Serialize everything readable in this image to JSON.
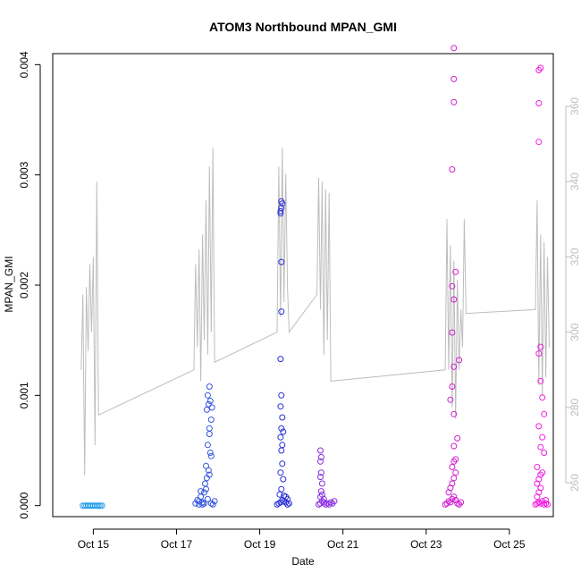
{
  "chart_data": {
    "type": "scatter",
    "title": "ATOM3 Northbound MPAN_GMI",
    "xlabel": "Date",
    "ylabel": "MPAN_GMI",
    "xlim": [
      "2022-10-14 00:36",
      "2022-10-26 01:20"
    ],
    "ylim": [
      -0.0001,
      0.0041
    ],
    "ylim_right": [
      251,
      374
    ],
    "x_ticks": [
      "Oct 15",
      "Oct 17",
      "Oct 19",
      "Oct 21",
      "Oct 23",
      "Oct 25"
    ],
    "x_tick_dates": [
      "2022-10-15",
      "2022-10-17",
      "2022-10-19",
      "2022-10-21",
      "2022-10-23",
      "2022-10-25"
    ],
    "y_ticks": [
      "0.000",
      "0.001",
      "0.002",
      "0.003",
      "0.004"
    ],
    "y_tick_values": [
      0,
      0.001,
      0.002,
      0.003,
      0.004
    ],
    "y2_ticks": [
      "260",
      "280",
      "300",
      "320",
      "340",
      "360"
    ],
    "y2_tick_values": [
      260,
      280,
      300,
      320,
      340,
      360
    ],
    "colors": {
      "line": "#bdbdbd",
      "axis": "#000000",
      "right_axis": "#bdbdbd"
    },
    "series": [
      {
        "color": "#1e9be8",
        "points": [
          [
            "2022-10-14 18:00",
            0
          ],
          [
            "2022-10-14 19:00",
            0
          ],
          [
            "2022-10-14 20:00",
            0
          ],
          [
            "2022-10-14 21:00",
            0
          ],
          [
            "2022-10-14 22:00",
            0
          ],
          [
            "2022-10-14 23:00",
            0
          ],
          [
            "2022-10-15 00:00",
            0
          ],
          [
            "2022-10-15 01:00",
            0
          ],
          [
            "2022-10-15 02:00",
            0
          ],
          [
            "2022-10-15 03:00",
            0
          ],
          [
            "2022-10-15 04:00",
            0
          ],
          [
            "2022-10-15 05:00",
            0
          ]
        ]
      },
      {
        "color": "#3355dd",
        "points": [
          [
            "2022-10-17 11:00",
            2e-05
          ],
          [
            "2022-10-17 12:00",
            5e-05
          ],
          [
            "2022-10-17 13:00",
            4e-05
          ],
          [
            "2022-10-17 14:00",
            8e-05
          ],
          [
            "2022-10-17 15:00",
            3e-05
          ],
          [
            "2022-10-17 16:00",
            0.00012
          ],
          [
            "2022-10-17 17:00",
            0.00015
          ],
          [
            "2022-10-17 18:00",
            6e-05
          ],
          [
            "2022-10-17 14:00",
            0.00013
          ],
          [
            "2022-10-17 16:30",
            0.0002
          ],
          [
            "2022-10-17 17:30",
            0.00025
          ],
          [
            "2022-10-17 18:30",
            0.00032
          ],
          [
            "2022-10-17 17:00",
            0.00036
          ],
          [
            "2022-10-17 19:00",
            0.00028
          ],
          [
            "2022-10-17 20:00",
            0.00045
          ],
          [
            "2022-10-17 19:30",
            0.00048
          ],
          [
            "2022-10-17 18:00",
            0.00055
          ],
          [
            "2022-10-17 19:00",
            0.0007
          ],
          [
            "2022-10-17 20:00",
            0.00078
          ],
          [
            "2022-10-17 17:30",
            0.00087
          ],
          [
            "2022-10-17 18:30",
            0.00092
          ],
          [
            "2022-10-17 19:30",
            0.00095
          ],
          [
            "2022-10-17 18:00",
            0.001
          ],
          [
            "2022-10-17 19:00",
            0.00108
          ],
          [
            "2022-10-17 20:30",
            0.00089
          ],
          [
            "2022-10-17 19:00",
            0.00065
          ],
          [
            "2022-10-17 20:00",
            2e-05
          ],
          [
            "2022-10-17 21:00",
            1e-05
          ],
          [
            "2022-10-17 22:00",
            4e-05
          ],
          [
            "2022-10-17 15:00",
            1e-05
          ],
          [
            "2022-10-17 16:00",
            2e-05
          ],
          [
            "2022-10-17 13:00",
            1e-05
          ]
        ]
      },
      {
        "color": "#2a2ed6",
        "points": [
          [
            "2022-10-19 10:00",
            1e-05
          ],
          [
            "2022-10-19 11:00",
            2e-05
          ],
          [
            "2022-10-19 12:00",
            3e-05
          ],
          [
            "2022-10-19 13:00",
            5e-05
          ],
          [
            "2022-10-19 14:00",
            4e-05
          ],
          [
            "2022-10-19 15:00",
            8e-05
          ],
          [
            "2022-10-19 16:00",
            6e-05
          ],
          [
            "2022-10-19 17:00",
            2e-05
          ],
          [
            "2022-10-19 11:30",
            0.0001
          ],
          [
            "2022-10-19 12:30",
            0.00015
          ],
          [
            "2022-10-19 13:30",
            0.00024
          ],
          [
            "2022-10-19 12:00",
            0.0003
          ],
          [
            "2022-10-19 13:00",
            0.00038
          ],
          [
            "2022-10-19 12:30",
            0.0005
          ],
          [
            "2022-10-19 13:00",
            0.00055
          ],
          [
            "2022-10-19 12:00",
            0.00062
          ],
          [
            "2022-10-19 13:30",
            0.00067
          ],
          [
            "2022-10-19 12:30",
            0.0007
          ],
          [
            "2022-10-19 13:00",
            0.0008
          ],
          [
            "2022-10-19 12:00",
            0.0009
          ],
          [
            "2022-10-19 12:30",
            0.001
          ],
          [
            "2022-10-19 12:00",
            0.00133
          ],
          [
            "2022-10-19 12:30",
            0.00176
          ],
          [
            "2022-10-19 12:30",
            0.00221
          ],
          [
            "2022-10-19 12:30",
            0.0027
          ],
          [
            "2022-10-19 13:00",
            0.00274
          ],
          [
            "2022-10-19 12:30",
            0.00276
          ],
          [
            "2022-10-19 12:00",
            0.00267
          ],
          [
            "2022-10-19 12:00",
            0.00265
          ],
          [
            "2022-10-19 15:00",
            3e-05
          ],
          [
            "2022-10-19 16:00",
            1e-05
          ],
          [
            "2022-10-19 14:00",
            9e-05
          ]
        ]
      },
      {
        "color": "#8a2be2",
        "points": [
          [
            "2022-10-20 10:00",
            1e-05
          ],
          [
            "2022-10-20 11:00",
            2e-05
          ],
          [
            "2022-10-20 12:00",
            4e-05
          ],
          [
            "2022-10-20 13:00",
            3e-05
          ],
          [
            "2022-10-20 14:00",
            1e-05
          ],
          [
            "2022-10-20 15:00",
            2e-05
          ],
          [
            "2022-10-20 16:00",
            1e-05
          ],
          [
            "2022-10-20 17:00",
            3e-05
          ],
          [
            "2022-10-20 18:00",
            2e-05
          ],
          [
            "2022-10-20 19:00",
            4e-05
          ],
          [
            "2022-10-20 11:00",
            8e-05
          ],
          [
            "2022-10-20 12:00",
            0.0001
          ],
          [
            "2022-10-20 11:30",
            0.00013
          ],
          [
            "2022-10-20 12:00",
            0.0002
          ],
          [
            "2022-10-20 11:00",
            0.00026
          ],
          [
            "2022-10-20 11:30",
            0.0003
          ],
          [
            "2022-10-20 11:00",
            0.0004
          ],
          [
            "2022-10-20 11:30",
            0.00044
          ],
          [
            "2022-10-20 11:00",
            0.0005
          ],
          [
            "2022-10-20 13:00",
            6e-05
          ]
        ]
      },
      {
        "color": "#d11ed1",
        "points": [
          [
            "2022-10-23 11:00",
            1e-05
          ],
          [
            "2022-10-23 12:00",
            2e-05
          ],
          [
            "2022-10-23 13:00",
            4e-05
          ],
          [
            "2022-10-23 14:00",
            3e-05
          ],
          [
            "2022-10-23 15:00",
            6e-05
          ],
          [
            "2022-10-23 16:00",
            8e-05
          ],
          [
            "2022-10-23 17:00",
            5e-05
          ],
          [
            "2022-10-23 18:00",
            2e-05
          ],
          [
            "2022-10-23 19:00",
            1e-05
          ],
          [
            "2022-10-23 20:00",
            3e-05
          ],
          [
            "2022-10-23 13:00",
            0.00012
          ],
          [
            "2022-10-23 14:00",
            0.00016
          ],
          [
            "2022-10-23 15:00",
            0.0002
          ],
          [
            "2022-10-23 16:00",
            0.00025
          ],
          [
            "2022-10-23 17:00",
            0.0003
          ],
          [
            "2022-10-23 15:00",
            0.00035
          ],
          [
            "2022-10-23 16:00",
            0.0004
          ],
          [
            "2022-10-23 17:00",
            0.00042
          ],
          [
            "2022-10-23 16:00",
            0.00054
          ],
          [
            "2022-10-23 18:00",
            0.00061
          ],
          [
            "2022-10-23 16:00",
            0.00083
          ],
          [
            "2022-10-23 14:00",
            0.00096
          ],
          [
            "2022-10-23 15:00",
            0.00108
          ],
          [
            "2022-10-23 16:00",
            0.00126
          ],
          [
            "2022-10-23 19:00",
            0.00132
          ],
          [
            "2022-10-23 15:00",
            0.00157
          ],
          [
            "2022-10-23 16:00",
            0.00187
          ],
          [
            "2022-10-23 15:00",
            0.00199
          ],
          [
            "2022-10-23 17:00",
            0.00212
          ],
          [
            "2022-10-23 15:00",
            0.00305
          ],
          [
            "2022-10-23 16:00",
            0.00366
          ],
          [
            "2022-10-23 16:00",
            0.00387
          ],
          [
            "2022-10-23 16:00",
            0.00415
          ]
        ]
      },
      {
        "color": "#f01ce0",
        "points": [
          [
            "2022-10-25 15:00",
            1e-05
          ],
          [
            "2022-10-25 16:00",
            2e-05
          ],
          [
            "2022-10-25 17:00",
            3e-05
          ],
          [
            "2022-10-25 18:00",
            2e-05
          ],
          [
            "2022-10-25 19:00",
            4e-05
          ],
          [
            "2022-10-25 20:00",
            1e-05
          ],
          [
            "2022-10-25 21:00",
            2e-05
          ],
          [
            "2022-10-25 22:00",
            1e-05
          ],
          [
            "2022-10-25 16:00",
            8e-05
          ],
          [
            "2022-10-25 17:00",
            0.00012
          ],
          [
            "2022-10-25 18:00",
            0.00016
          ],
          [
            "2022-10-25 16:00",
            0.0002
          ],
          [
            "2022-10-25 17:00",
            0.00024
          ],
          [
            "2022-10-25 18:00",
            0.00028
          ],
          [
            "2022-10-25 16:00",
            0.00035
          ],
          [
            "2022-10-25 19:00",
            0.0003
          ],
          [
            "2022-10-25 20:00",
            0.00048
          ],
          [
            "2022-10-25 18:00",
            0.00053
          ],
          [
            "2022-10-25 19:00",
            0.00062
          ],
          [
            "2022-10-25 17:00",
            0.00072
          ],
          [
            "2022-10-25 20:00",
            0.00083
          ],
          [
            "2022-10-25 19:00",
            0.00098
          ],
          [
            "2022-10-25 18:00",
            0.00113
          ],
          [
            "2022-10-25 17:00",
            0.00138
          ],
          [
            "2022-10-25 18:00",
            0.00144
          ],
          [
            "2022-10-25 17:00",
            0.0033
          ],
          [
            "2022-10-25 17:00",
            0.00365
          ],
          [
            "2022-10-25 17:00",
            0.00395
          ],
          [
            "2022-10-25 18:00",
            0.00397
          ],
          [
            "2022-10-25 21:00",
            5e-05
          ]
        ]
      }
    ],
    "right_axis_line": {
      "color": "#bdbdbd",
      "points": [
        [
          "2022-10-14 17:00",
          290
        ],
        [
          "2022-10-14 18:00",
          310
        ],
        [
          "2022-10-14 19:00",
          262
        ],
        [
          "2022-10-14 20:00",
          312
        ],
        [
          "2022-10-14 21:00",
          295
        ],
        [
          "2022-10-14 22:00",
          318
        ],
        [
          "2022-10-14 23:00",
          300
        ],
        [
          "2022-10-15 00:00",
          320
        ],
        [
          "2022-10-15 01:00",
          270
        ],
        [
          "2022-10-15 02:00",
          340
        ],
        [
          "2022-10-15 03:00",
          278
        ],
        [
          "2022-10-17 10:00",
          290
        ],
        [
          "2022-10-17 11:00",
          318
        ],
        [
          "2022-10-17 12:00",
          296
        ],
        [
          "2022-10-17 13:00",
          322
        ],
        [
          "2022-10-17 14:00",
          287
        ],
        [
          "2022-10-17 15:00",
          326
        ],
        [
          "2022-10-17 16:00",
          298
        ],
        [
          "2022-10-17 17:00",
          335
        ],
        [
          "2022-10-17 18:00",
          294
        ],
        [
          "2022-10-17 19:00",
          344
        ],
        [
          "2022-10-17 20:00",
          300
        ],
        [
          "2022-10-17 21:00",
          349
        ],
        [
          "2022-10-17 22:00",
          292
        ],
        [
          "2022-10-19 10:00",
          300
        ],
        [
          "2022-10-19 11:00",
          344
        ],
        [
          "2022-10-19 12:00",
          304
        ],
        [
          "2022-10-19 13:00",
          349
        ],
        [
          "2022-10-19 14:00",
          308
        ],
        [
          "2022-10-19 15:00",
          342
        ],
        [
          "2022-10-19 16:00",
          312
        ],
        [
          "2022-10-19 17:00",
          300
        ],
        [
          "2022-10-20 09:00",
          310
        ],
        [
          "2022-10-20 10:00",
          341
        ],
        [
          "2022-10-20 11:00",
          306
        ],
        [
          "2022-10-20 12:00",
          340
        ],
        [
          "2022-10-20 13:00",
          294
        ],
        [
          "2022-10-20 14:00",
          338
        ],
        [
          "2022-10-20 15:00",
          298
        ],
        [
          "2022-10-20 16:00",
          337
        ],
        [
          "2022-10-20 17:00",
          287
        ],
        [
          "2022-10-23 11:00",
          290
        ],
        [
          "2022-10-23 12:00",
          330
        ],
        [
          "2022-10-23 13:00",
          290
        ],
        [
          "2022-10-23 14:00",
          323
        ],
        [
          "2022-10-23 15:00",
          280
        ],
        [
          "2022-10-23 16:00",
          319
        ],
        [
          "2022-10-23 17:00",
          277
        ],
        [
          "2022-10-23 18:00",
          314
        ],
        [
          "2022-10-23 19:00",
          290
        ],
        [
          "2022-10-23 20:00",
          306
        ],
        [
          "2022-10-23 21:00",
          296
        ],
        [
          "2022-10-23 22:00",
          330
        ],
        [
          "2022-10-23 23:00",
          305
        ],
        [
          "2022-10-25 15:00",
          306
        ],
        [
          "2022-10-25 16:00",
          335
        ],
        [
          "2022-10-25 17:00",
          286
        ],
        [
          "2022-10-25 18:00",
          326
        ],
        [
          "2022-10-25 19:00",
          283
        ],
        [
          "2022-10-25 20:00",
          324
        ],
        [
          "2022-10-25 21:00",
          288
        ],
        [
          "2022-10-25 22:00",
          320
        ],
        [
          "2022-10-25 23:00",
          296
        ]
      ]
    }
  }
}
